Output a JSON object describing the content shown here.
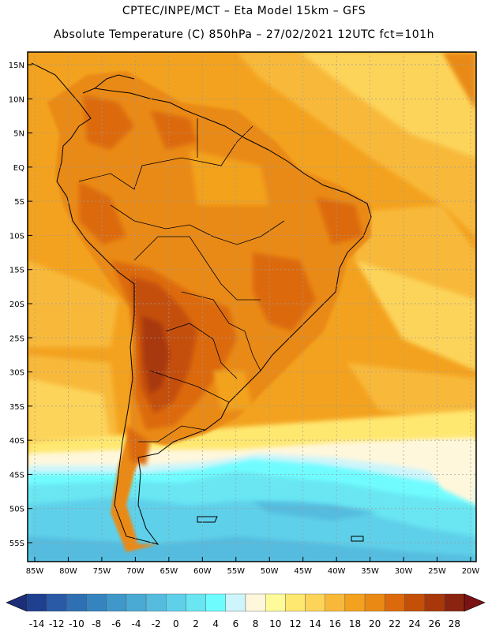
{
  "header": {
    "line1": "CPTEC/INPE/MCT –  Eta Model 15km – GFS",
    "line2": "Absolute Temperature (C) 850hPa – 27/02/2021 12UTC fct=101h"
  },
  "map": {
    "lat_ticks": [
      "15N",
      "10N",
      "5N",
      "EQ",
      "5S",
      "10S",
      "15S",
      "20S",
      "25S",
      "30S",
      "35S",
      "40S",
      "45S",
      "50S",
      "55S"
    ],
    "lon_ticks": [
      "85W",
      "80W",
      "75W",
      "70W",
      "65W",
      "60W",
      "55W",
      "50W",
      "45W",
      "40W",
      "35W",
      "30W",
      "25W",
      "20W"
    ],
    "lon_range": [
      -85,
      -20
    ],
    "lat_range": [
      -58,
      17
    ]
  },
  "colorbar": {
    "labels": [
      "-14",
      "-12",
      "-10",
      "-8",
      "-6",
      "-4",
      "-2",
      "0",
      "2",
      "4",
      "6",
      "8",
      "10",
      "12",
      "14",
      "16",
      "18",
      "20",
      "22",
      "24",
      "26",
      "28"
    ],
    "colors": [
      "#1f3f8f",
      "#2a5aa6",
      "#2f6fb3",
      "#3584c0",
      "#3f98c9",
      "#4aaad4",
      "#55bcdf",
      "#5fd0ea",
      "#69e6f2",
      "#6ffcff",
      "#cdf5fb",
      "#fff7dc",
      "#fffb9a",
      "#ffe870",
      "#fdd45a",
      "#f8b93a",
      "#f3a21f",
      "#ea8a15",
      "#dc6a0c",
      "#c45008",
      "#a8380a",
      "#8a2410"
    ],
    "over_color": "#7b1215",
    "under_color": "#1c2e78"
  }
}
